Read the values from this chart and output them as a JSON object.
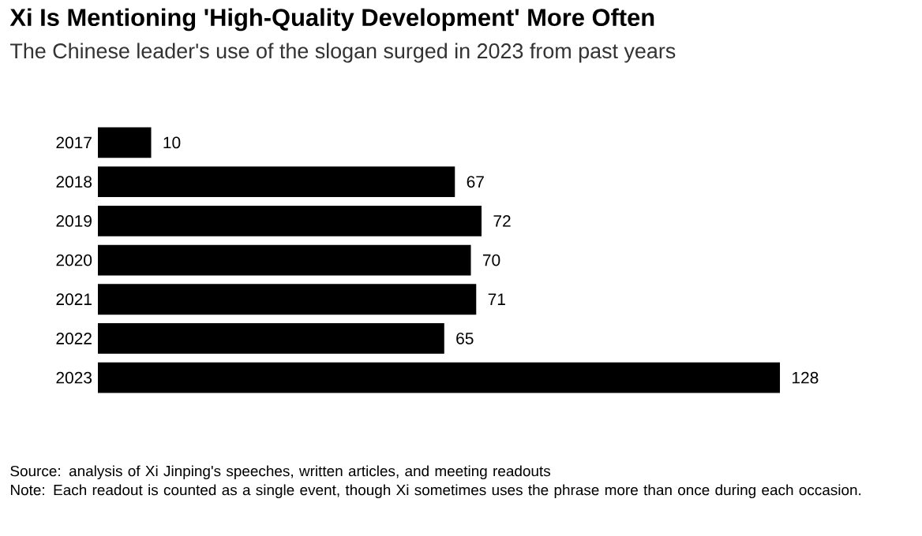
{
  "chart_data": {
    "type": "bar",
    "orientation": "horizontal",
    "title": "Xi Is Mentioning 'High-Quality Development' More Often",
    "subtitle": "The Chinese leader's use of the slogan surged in 2023 from past years",
    "categories": [
      "2017",
      "2018",
      "2019",
      "2020",
      "2021",
      "2022",
      "2023"
    ],
    "values": [
      10,
      67,
      72,
      70,
      71,
      65,
      128
    ],
    "color": "#000000",
    "data_labels": true,
    "tick_labels": "y",
    "annotations": [
      "Source: analysis of Xi Jinping's speeches, written articles, and meeting readouts",
      "Note: Each readout is counted as a single event, though Xi sometimes uses the phrase more than once during each occasion."
    ]
  }
}
